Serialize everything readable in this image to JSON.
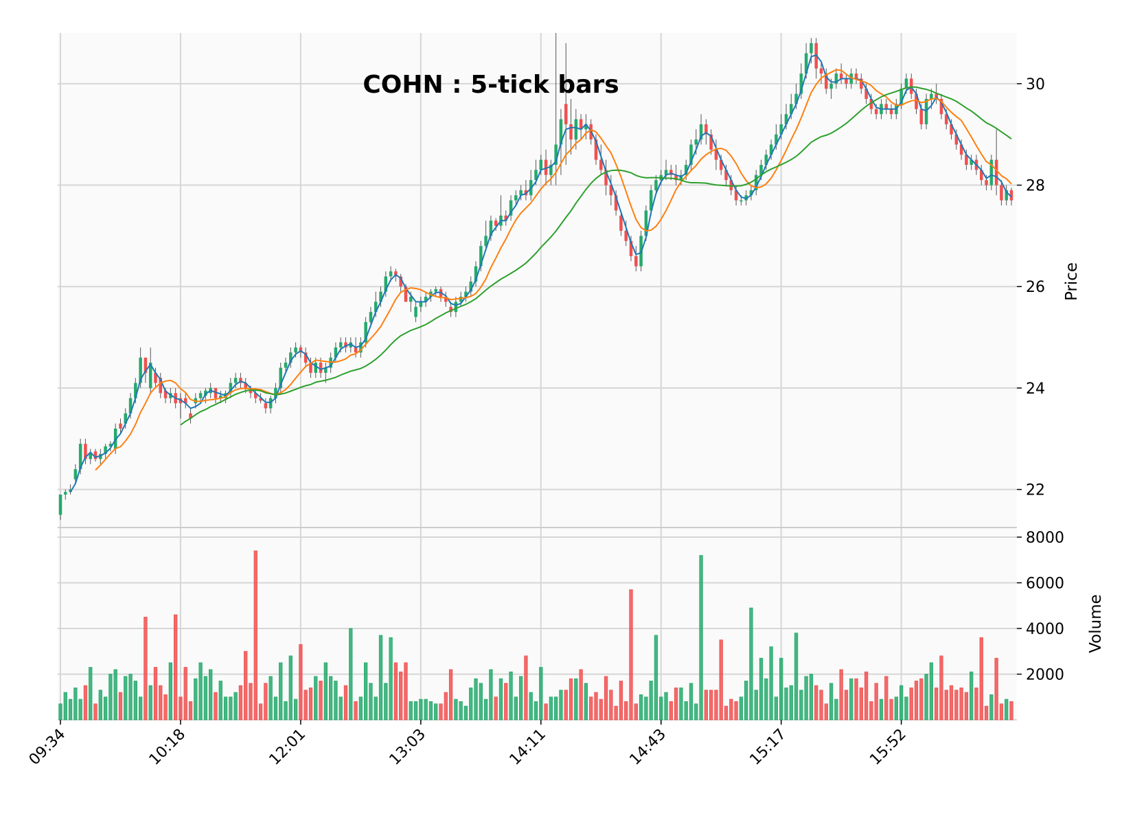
{
  "chart_data": {
    "type": "candlestick",
    "title": "COHN : 5-tick bars",
    "price_axis": {
      "label": "Price",
      "ticks": [
        22,
        24,
        26,
        28,
        30
      ],
      "range": [
        21.25,
        31.0
      ],
      "position": "right"
    },
    "volume_axis": {
      "label": "Volume",
      "ticks": [
        2000,
        4000,
        6000,
        8000
      ],
      "range": [
        0,
        8000
      ],
      "position": "right"
    },
    "x_tick_labels": [
      "09:34",
      "10:18",
      "12:01",
      "13:03",
      "14:11",
      "14:43",
      "15:17",
      "15:52"
    ],
    "x_tick_bar_index": [
      0,
      24,
      48,
      72,
      96,
      120,
      144,
      168
    ],
    "grid": true,
    "colors": {
      "up": "#26a96c",
      "down": "#f05050",
      "ma_fast": "#1f77b4",
      "ma_mid": "#ff7f0e",
      "ma_slow": "#2ca02c",
      "panel_bg": "#fafafa",
      "grid": "#d6d6d6"
    },
    "moving_averages": [
      {
        "window": 3,
        "color": "#1f77b4"
      },
      {
        "window": 8,
        "color": "#ff7f0e"
      },
      {
        "window": 25,
        "color": "#2ca02c"
      }
    ],
    "ohlcv": [
      [
        21.5,
        21.9,
        21.4,
        21.9,
        700
      ],
      [
        21.9,
        22.0,
        21.8,
        21.95,
        1200
      ],
      [
        21.95,
        22.1,
        21.9,
        22.0,
        900
      ],
      [
        22.2,
        22.5,
        22.1,
        22.4,
        1400
      ],
      [
        22.4,
        23.0,
        22.3,
        22.9,
        900
      ],
      [
        22.9,
        23.0,
        22.5,
        22.6,
        1500
      ],
      [
        22.6,
        22.8,
        22.5,
        22.7,
        2300
      ],
      [
        22.75,
        22.8,
        22.55,
        22.6,
        700
      ],
      [
        22.6,
        22.8,
        22.5,
        22.7,
        1300
      ],
      [
        22.7,
        22.9,
        22.6,
        22.85,
        1000
      ],
      [
        22.85,
        22.95,
        22.75,
        22.9,
        2000
      ],
      [
        22.8,
        23.3,
        22.7,
        23.2,
        2200
      ],
      [
        23.3,
        23.4,
        23.1,
        23.2,
        1200
      ],
      [
        23.3,
        23.6,
        23.2,
        23.5,
        1900
      ],
      [
        23.5,
        23.9,
        23.4,
        23.8,
        2000
      ],
      [
        23.8,
        24.2,
        23.7,
        24.1,
        1700
      ],
      [
        24.1,
        24.8,
        24.0,
        24.6,
        1000
      ],
      [
        24.6,
        24.5,
        24.1,
        24.3,
        4500
      ],
      [
        24.0,
        24.8,
        23.9,
        24.5,
        1500
      ],
      [
        24.3,
        24.4,
        24.0,
        24.1,
        2300
      ],
      [
        24.2,
        24.3,
        23.8,
        23.9,
        1500
      ],
      [
        23.95,
        24.0,
        23.7,
        23.8,
        1100
      ],
      [
        23.8,
        24.0,
        23.7,
        23.9,
        2500
      ],
      [
        23.9,
        24.0,
        23.6,
        23.7,
        4600
      ],
      [
        23.8,
        23.9,
        23.4,
        23.7,
        1000
      ],
      [
        23.8,
        23.9,
        23.6,
        23.7,
        2300
      ],
      [
        23.5,
        23.6,
        23.3,
        23.4,
        800
      ],
      [
        23.7,
        23.9,
        23.6,
        23.8,
        1800
      ],
      [
        23.8,
        23.95,
        23.7,
        23.9,
        2500
      ],
      [
        23.85,
        24.0,
        23.7,
        23.95,
        1900
      ],
      [
        23.9,
        24.1,
        23.8,
        24.0,
        2200
      ],
      [
        24.0,
        24.0,
        23.7,
        23.8,
        1200
      ],
      [
        23.8,
        23.95,
        23.7,
        23.85,
        1700
      ],
      [
        23.8,
        23.95,
        23.7,
        23.9,
        1000
      ],
      [
        23.9,
        24.2,
        23.8,
        24.1,
        1000
      ],
      [
        24.1,
        24.3,
        24.0,
        24.2,
        1200
      ],
      [
        24.2,
        24.3,
        24.0,
        24.1,
        1500
      ],
      [
        24.1,
        24.2,
        23.9,
        24.0,
        3000
      ],
      [
        23.95,
        24.05,
        23.8,
        23.9,
        1600
      ],
      [
        23.9,
        24.0,
        23.7,
        23.8,
        7400
      ],
      [
        23.8,
        23.9,
        23.7,
        23.75,
        700
      ],
      [
        23.7,
        23.8,
        23.5,
        23.6,
        1600
      ],
      [
        23.6,
        23.85,
        23.5,
        23.8,
        1900
      ],
      [
        23.8,
        24.1,
        23.7,
        24.0,
        1000
      ],
      [
        24.0,
        24.5,
        23.9,
        24.4,
        2500
      ],
      [
        24.4,
        24.6,
        24.3,
        24.5,
        800
      ],
      [
        24.5,
        24.8,
        24.4,
        24.7,
        2800
      ],
      [
        24.7,
        24.9,
        24.6,
        24.8,
        900
      ],
      [
        24.8,
        24.85,
        24.6,
        24.7,
        3300
      ],
      [
        24.7,
        24.8,
        24.4,
        24.5,
        1300
      ],
      [
        24.5,
        24.6,
        24.2,
        24.3,
        1400
      ],
      [
        24.3,
        24.6,
        24.2,
        24.5,
        1900
      ],
      [
        24.5,
        24.6,
        24.2,
        24.3,
        1700
      ],
      [
        24.3,
        24.5,
        24.1,
        24.4,
        2500
      ],
      [
        24.4,
        24.7,
        24.3,
        24.6,
        1900
      ],
      [
        24.6,
        24.9,
        24.5,
        24.8,
        1700
      ],
      [
        24.8,
        25.0,
        24.7,
        24.9,
        1000
      ],
      [
        24.9,
        25.0,
        24.7,
        24.8,
        1500
      ],
      [
        24.8,
        25.0,
        24.7,
        24.9,
        4000
      ],
      [
        24.8,
        25.0,
        24.6,
        24.7,
        800
      ],
      [
        24.7,
        25.0,
        24.6,
        24.9,
        1000
      ],
      [
        24.9,
        25.4,
        24.8,
        25.3,
        2500
      ],
      [
        25.3,
        25.6,
        25.2,
        25.5,
        1600
      ],
      [
        25.5,
        25.9,
        25.4,
        25.7,
        1000
      ],
      [
        25.7,
        26.0,
        25.6,
        25.9,
        3700
      ],
      [
        25.9,
        26.3,
        25.8,
        26.2,
        1600
      ],
      [
        26.2,
        26.4,
        26.1,
        26.3,
        3600
      ],
      [
        26.3,
        26.35,
        26.1,
        26.2,
        2500
      ],
      [
        26.2,
        26.25,
        25.9,
        26.0,
        2100
      ],
      [
        26.0,
        26.05,
        25.7,
        25.7,
        2500
      ],
      [
        25.7,
        25.9,
        25.5,
        25.8,
        800
      ],
      [
        25.4,
        25.7,
        25.3,
        25.6,
        800
      ],
      [
        25.6,
        25.8,
        25.5,
        25.7,
        900
      ],
      [
        25.7,
        25.9,
        25.6,
        25.8,
        900
      ],
      [
        25.8,
        25.95,
        25.7,
        25.9,
        800
      ],
      [
        25.9,
        26.0,
        25.8,
        25.95,
        700
      ],
      [
        25.95,
        26.0,
        25.7,
        25.8,
        700
      ],
      [
        25.8,
        25.9,
        25.6,
        25.7,
        1200
      ],
      [
        25.6,
        25.7,
        25.4,
        25.5,
        2200
      ],
      [
        25.5,
        25.8,
        25.4,
        25.7,
        900
      ],
      [
        25.7,
        25.9,
        25.6,
        25.8,
        800
      ],
      [
        25.8,
        26.0,
        25.7,
        25.9,
        600
      ],
      [
        25.9,
        26.2,
        25.8,
        26.1,
        1400
      ],
      [
        26.1,
        26.5,
        26.0,
        26.4,
        1800
      ],
      [
        26.4,
        26.9,
        26.3,
        26.8,
        1600
      ],
      [
        26.8,
        27.3,
        26.7,
        27.0,
        900
      ],
      [
        27.0,
        27.4,
        26.9,
        27.3,
        2200
      ],
      [
        27.3,
        27.35,
        27.1,
        27.2,
        1000
      ],
      [
        27.2,
        27.8,
        27.1,
        27.4,
        1800
      ],
      [
        27.4,
        27.5,
        27.2,
        27.3,
        1600
      ],
      [
        27.4,
        27.8,
        27.3,
        27.7,
        2100
      ],
      [
        27.7,
        27.9,
        27.6,
        27.8,
        1000
      ],
      [
        27.8,
        28.0,
        27.7,
        27.9,
        1900
      ],
      [
        27.9,
        28.1,
        27.7,
        27.8,
        2800
      ],
      [
        27.8,
        28.3,
        27.7,
        28.1,
        1200
      ],
      [
        28.1,
        28.5,
        28.0,
        28.3,
        800
      ],
      [
        28.3,
        28.6,
        28.2,
        28.5,
        2300
      ],
      [
        28.5,
        28.7,
        28.0,
        28.2,
        700
      ],
      [
        28.2,
        28.5,
        28.0,
        28.4,
        1000
      ],
      [
        28.4,
        31.0,
        28.0,
        28.8,
        1000
      ],
      [
        28.8,
        29.5,
        28.2,
        29.3,
        1300
      ],
      [
        29.6,
        30.8,
        28.4,
        29.2,
        1300
      ],
      [
        29.2,
        29.7,
        28.6,
        28.9,
        1800
      ],
      [
        28.9,
        29.5,
        28.7,
        29.3,
        1800
      ],
      [
        29.3,
        29.4,
        28.9,
        29.1,
        2200
      ],
      [
        29.1,
        29.4,
        28.9,
        29.2,
        1600
      ],
      [
        29.2,
        29.3,
        28.8,
        28.9,
        1000
      ],
      [
        28.9,
        29.0,
        28.4,
        28.5,
        1200
      ],
      [
        28.5,
        28.8,
        28.2,
        28.3,
        900
      ],
      [
        28.3,
        28.5,
        27.8,
        28.0,
        1900
      ],
      [
        28.0,
        28.2,
        27.6,
        27.8,
        1300
      ],
      [
        27.8,
        27.9,
        27.4,
        27.5,
        600
      ],
      [
        27.4,
        27.5,
        27.0,
        27.1,
        1700
      ],
      [
        27.1,
        27.3,
        26.8,
        26.9,
        800
      ],
      [
        26.9,
        27.0,
        26.5,
        26.6,
        5700
      ],
      [
        26.6,
        26.8,
        26.3,
        26.4,
        700
      ],
      [
        26.4,
        27.1,
        26.3,
        27.0,
        1100
      ],
      [
        27.0,
        27.6,
        26.9,
        27.5,
        1000
      ],
      [
        27.5,
        28.0,
        27.4,
        27.9,
        1700
      ],
      [
        27.9,
        28.2,
        27.8,
        28.1,
        3700
      ],
      [
        28.1,
        28.3,
        28.0,
        28.2,
        1000
      ],
      [
        28.2,
        28.5,
        28.1,
        28.3,
        1200
      ],
      [
        28.3,
        28.4,
        28.1,
        28.2,
        800
      ],
      [
        28.2,
        28.4,
        28.0,
        28.1,
        1400
      ],
      [
        28.1,
        28.3,
        28.0,
        28.2,
        1400
      ],
      [
        28.2,
        28.5,
        28.1,
        28.4,
        800
      ],
      [
        28.4,
        28.9,
        28.3,
        28.8,
        1600
      ],
      [
        28.8,
        29.1,
        28.6,
        28.9,
        700
      ],
      [
        28.9,
        29.4,
        28.8,
        29.2,
        7200
      ],
      [
        29.2,
        29.3,
        28.8,
        29.0,
        1300
      ],
      [
        29.0,
        29.1,
        28.6,
        28.7,
        1300
      ],
      [
        28.7,
        28.9,
        28.3,
        28.5,
        1300
      ],
      [
        28.5,
        28.6,
        28.2,
        28.3,
        3500
      ],
      [
        28.3,
        28.4,
        28.0,
        28.1,
        600
      ],
      [
        28.1,
        28.2,
        27.8,
        27.9,
        900
      ],
      [
        27.9,
        28.0,
        27.6,
        27.7,
        800
      ],
      [
        27.7,
        27.8,
        27.6,
        27.7,
        1000
      ],
      [
        27.7,
        27.9,
        27.6,
        27.8,
        1700
      ],
      [
        27.8,
        28.0,
        27.7,
        27.9,
        4900
      ],
      [
        27.9,
        28.3,
        27.8,
        28.2,
        1300
      ],
      [
        28.2,
        28.5,
        28.1,
        28.4,
        2700
      ],
      [
        28.4,
        28.7,
        28.3,
        28.6,
        1800
      ],
      [
        28.6,
        28.9,
        28.5,
        28.8,
        3200
      ],
      [
        28.8,
        29.2,
        28.7,
        29.0,
        1000
      ],
      [
        29.0,
        29.4,
        28.9,
        29.2,
        2700
      ],
      [
        29.2,
        29.6,
        29.1,
        29.4,
        1400
      ],
      [
        29.4,
        29.8,
        29.3,
        29.6,
        1500
      ],
      [
        29.6,
        30.0,
        29.5,
        29.8,
        3800
      ],
      [
        29.8,
        30.4,
        29.7,
        30.2,
        1300
      ],
      [
        30.2,
        30.8,
        30.1,
        30.6,
        1900
      ],
      [
        30.6,
        30.9,
        30.4,
        30.8,
        2000
      ],
      [
        30.8,
        30.9,
        30.1,
        30.3,
        1500
      ],
      [
        30.3,
        30.4,
        30.0,
        30.2,
        1300
      ],
      [
        30.2,
        30.3,
        29.8,
        29.9,
        700
      ],
      [
        29.9,
        30.1,
        29.7,
        30.0,
        1600
      ],
      [
        30.0,
        30.3,
        29.9,
        30.2,
        900
      ],
      [
        30.2,
        30.4,
        30.0,
        30.1,
        2200
      ],
      [
        30.1,
        30.2,
        29.9,
        30.0,
        1300
      ],
      [
        30.0,
        30.3,
        29.9,
        30.2,
        1800
      ],
      [
        30.2,
        30.3,
        30.0,
        30.1,
        1800
      ],
      [
        30.1,
        30.2,
        29.8,
        29.9,
        1400
      ],
      [
        29.9,
        30.0,
        29.6,
        29.7,
        2100
      ],
      [
        29.7,
        29.8,
        29.4,
        29.5,
        800
      ],
      [
        29.5,
        29.6,
        29.3,
        29.4,
        1600
      ],
      [
        29.4,
        29.7,
        29.3,
        29.6,
        900
      ],
      [
        29.6,
        29.7,
        29.4,
        29.5,
        1900
      ],
      [
        29.5,
        29.6,
        29.3,
        29.4,
        900
      ],
      [
        29.4,
        29.7,
        29.3,
        29.6,
        1000
      ],
      [
        29.6,
        30.0,
        29.5,
        29.9,
        1500
      ],
      [
        29.9,
        30.2,
        29.8,
        30.1,
        1000
      ],
      [
        30.1,
        30.2,
        29.7,
        29.8,
        1400
      ],
      [
        29.8,
        29.9,
        29.4,
        29.5,
        1700
      ],
      [
        29.5,
        29.6,
        29.1,
        29.2,
        1800
      ],
      [
        29.2,
        29.8,
        29.1,
        29.7,
        2000
      ],
      [
        29.7,
        29.9,
        29.5,
        29.8,
        2500
      ],
      [
        29.8,
        30.0,
        29.6,
        29.7,
        1400
      ],
      [
        29.7,
        29.8,
        29.3,
        29.4,
        2800
      ],
      [
        29.4,
        29.5,
        29.1,
        29.2,
        1300
      ],
      [
        29.2,
        29.3,
        28.9,
        29.0,
        1500
      ],
      [
        29.0,
        29.1,
        28.7,
        28.8,
        1300
      ],
      [
        28.8,
        28.9,
        28.5,
        28.6,
        1400
      ],
      [
        28.6,
        28.7,
        28.3,
        28.4,
        1200
      ],
      [
        28.4,
        28.6,
        28.3,
        28.5,
        2100
      ],
      [
        28.5,
        28.6,
        28.2,
        28.3,
        1400
      ],
      [
        28.3,
        28.4,
        28.0,
        28.1,
        3600
      ],
      [
        28.1,
        28.2,
        27.9,
        28.0,
        600
      ],
      [
        28.0,
        28.6,
        27.9,
        28.5,
        1100
      ],
      [
        28.5,
        29.1,
        27.8,
        28.0,
        2700
      ],
      [
        28.0,
        28.1,
        27.6,
        27.7,
        700
      ],
      [
        27.7,
        28.0,
        27.6,
        27.9,
        900
      ],
      [
        27.9,
        27.95,
        27.6,
        27.7,
        800
      ]
    ]
  }
}
